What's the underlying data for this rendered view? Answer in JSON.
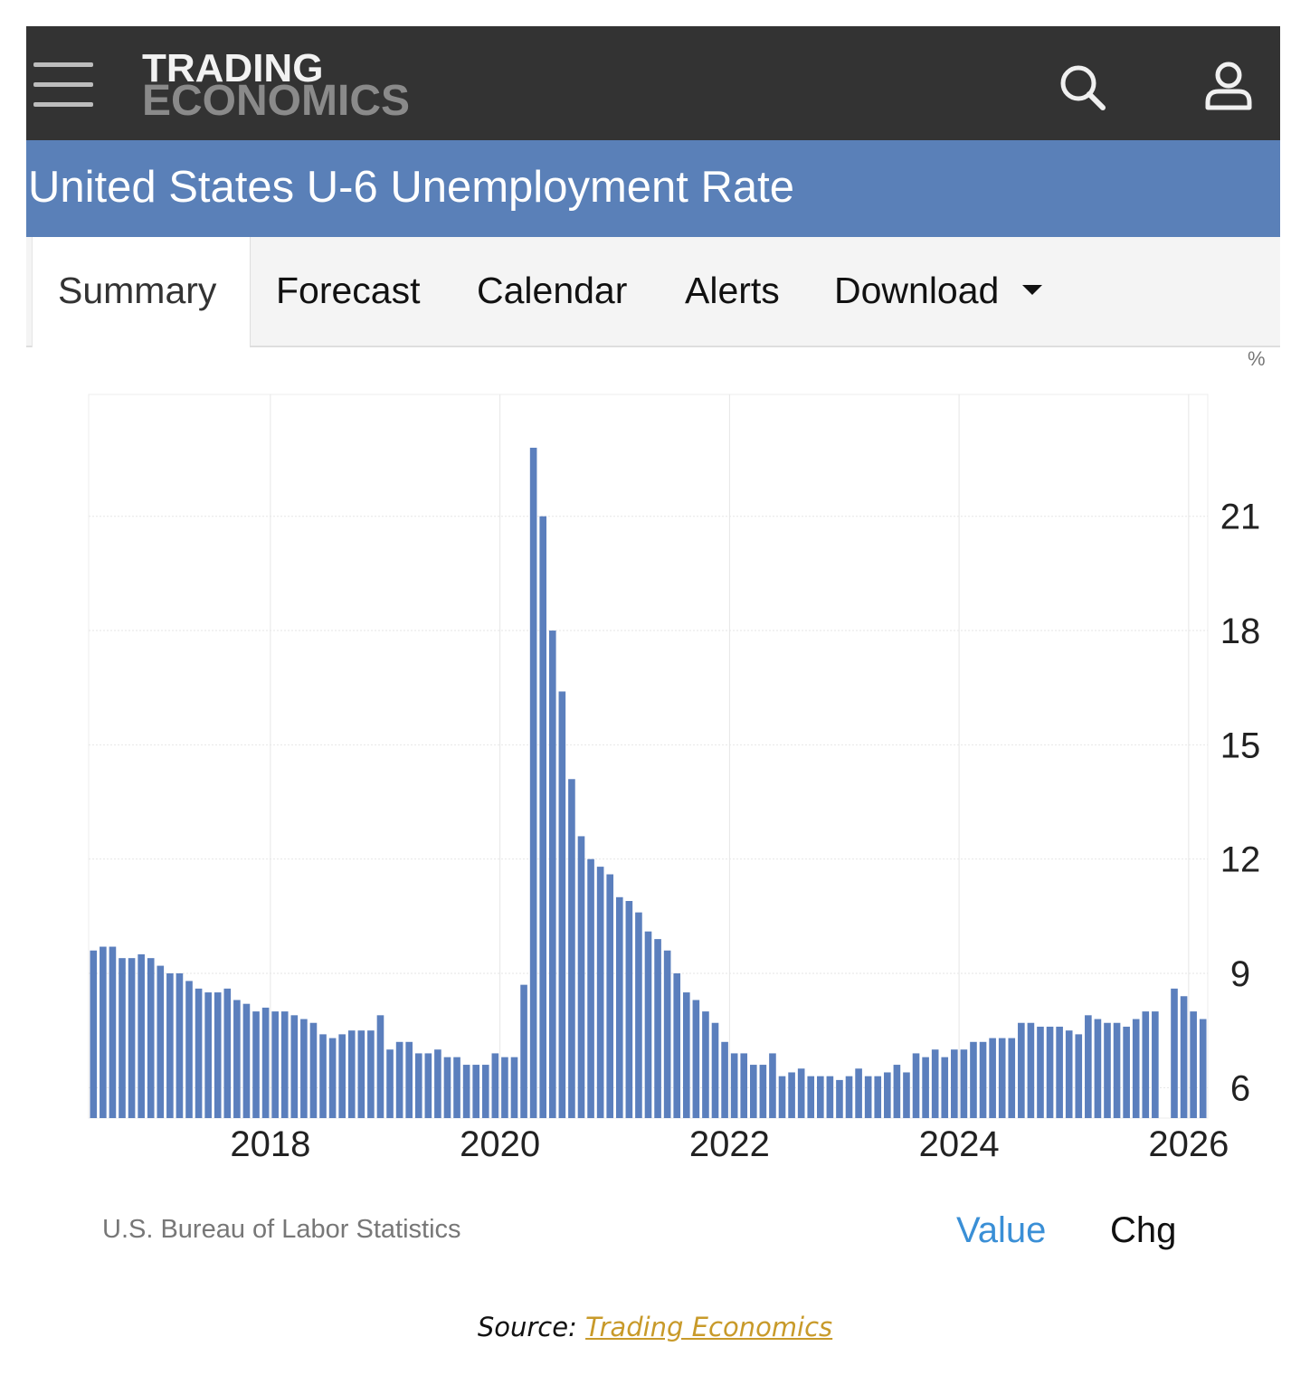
{
  "header": {
    "logo_line1": "TRADING",
    "logo_line2": "ECONOMICS",
    "icons": [
      "menu-icon",
      "search-icon",
      "user-icon"
    ]
  },
  "title": "United States U-6 Unemployment Rate",
  "tabs": [
    {
      "label": "Summary",
      "active": true
    },
    {
      "label": "Forecast"
    },
    {
      "label": "Calendar"
    },
    {
      "label": "Alerts"
    },
    {
      "label": "Download",
      "dropdown": true
    }
  ],
  "footer": {
    "source": "U.S. Bureau of Labor Statistics",
    "value_toggle": "Value",
    "chg_toggle": "Chg"
  },
  "caption": {
    "prefix": "Source: ",
    "link": "Trading Economics"
  },
  "colors": {
    "topbar": "#333333",
    "title_band": "#5a80b8",
    "bar": "#5b7fbd",
    "value_link": "#3a8fd6",
    "caption_link": "#c89a2a"
  },
  "chart_data": {
    "type": "bar",
    "unit": "%",
    "x_start": "2016-06",
    "frequency": "monthly",
    "ylim": [
      5.2,
      24.2
    ],
    "yticks": [
      6,
      9,
      12,
      15,
      18,
      21
    ],
    "ytick_side": "right",
    "xticks": [
      {
        "label": "2018",
        "date": "2018-01"
      },
      {
        "label": "2020",
        "date": "2020-01"
      },
      {
        "label": "2022",
        "date": "2022-01"
      },
      {
        "label": "2024",
        "date": "2024-01"
      },
      {
        "label": "2026",
        "date": "2026-01"
      }
    ],
    "grid": true,
    "values": [
      9.6,
      9.7,
      9.7,
      9.4,
      9.4,
      9.5,
      9.4,
      9.2,
      9.0,
      9.0,
      8.8,
      8.6,
      8.5,
      8.5,
      8.6,
      8.3,
      8.2,
      8.0,
      8.1,
      8.0,
      8.0,
      7.9,
      7.8,
      7.7,
      7.4,
      7.3,
      7.4,
      7.5,
      7.5,
      7.5,
      7.9,
      7.0,
      7.2,
      7.2,
      6.9,
      6.9,
      7.0,
      6.8,
      6.8,
      6.6,
      6.6,
      6.6,
      6.9,
      6.8,
      6.8,
      8.7,
      22.8,
      21.0,
      18.0,
      16.4,
      14.1,
      12.6,
      12.0,
      11.8,
      11.6,
      11.0,
      10.9,
      10.6,
      10.1,
      9.9,
      9.6,
      9.0,
      8.5,
      8.3,
      8.0,
      7.7,
      7.2,
      6.9,
      6.9,
      6.6,
      6.6,
      6.9,
      6.3,
      6.4,
      6.5,
      6.3,
      6.3,
      6.3,
      6.2,
      6.3,
      6.5,
      6.3,
      6.3,
      6.4,
      6.6,
      6.4,
      6.9,
      6.8,
      7.0,
      6.8,
      7.0,
      7.0,
      7.2,
      7.2,
      7.3,
      7.3,
      7.3,
      7.7,
      7.7,
      7.6,
      7.6,
      7.6,
      7.5,
      7.4,
      7.9,
      7.8,
      7.7,
      7.7,
      7.6,
      7.8,
      8.0,
      8.0,
      null,
      8.6,
      8.4,
      8.0,
      7.8
    ]
  }
}
